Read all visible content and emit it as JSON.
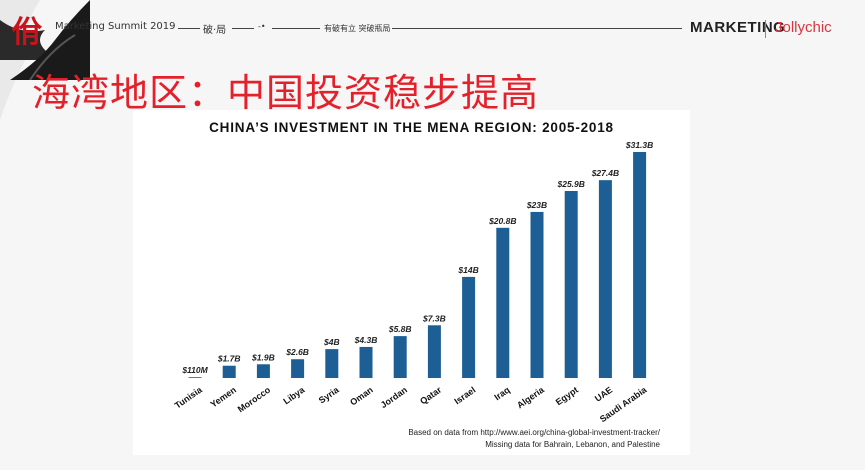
{
  "header": {
    "event": "Marketing Summit 2019",
    "tag1": "破·局",
    "tag2": "有破有立  突破瓶局",
    "brand1": "MARKETING",
    "brand2": "Jollychic"
  },
  "slide": {
    "title": "海湾地区：中国投资稳步提高"
  },
  "chart_data": {
    "type": "bar",
    "title": "CHINA’S INVESTMENT IN THE MENA REGION: 2005-2018",
    "categories": [
      "Tunisia",
      "Yemen",
      "Morocco",
      "Libya",
      "Syria",
      "Oman",
      "Jordan",
      "Qatar",
      "Israel",
      "Iraq",
      "Algeria",
      "Egypt",
      "UAE",
      "Saudi Arabia"
    ],
    "values": [
      0.11,
      1.7,
      1.9,
      2.6,
      4,
      4.3,
      5.8,
      7.3,
      14,
      20.8,
      23,
      25.9,
      27.4,
      31.3
    ],
    "data_labels": [
      "$110M",
      "$1.7B",
      "$1.9B",
      "$2.6B",
      "$4B",
      "$4.3B",
      "$5.8B",
      "$7.3B",
      "$14B",
      "$20.8B",
      "$23B",
      "$25.9B",
      "$27.4B",
      "$31.3B"
    ],
    "unit": "billion USD",
    "ylim": [
      0,
      31.3
    ],
    "bar_color": "#1d5e94",
    "grid": false,
    "footnote_1": "Based on data from http://www.aei.org/china-global-investment-tracker/",
    "footnote_2": "Missing data for Bahrain, Lebanon, and Palestine"
  }
}
